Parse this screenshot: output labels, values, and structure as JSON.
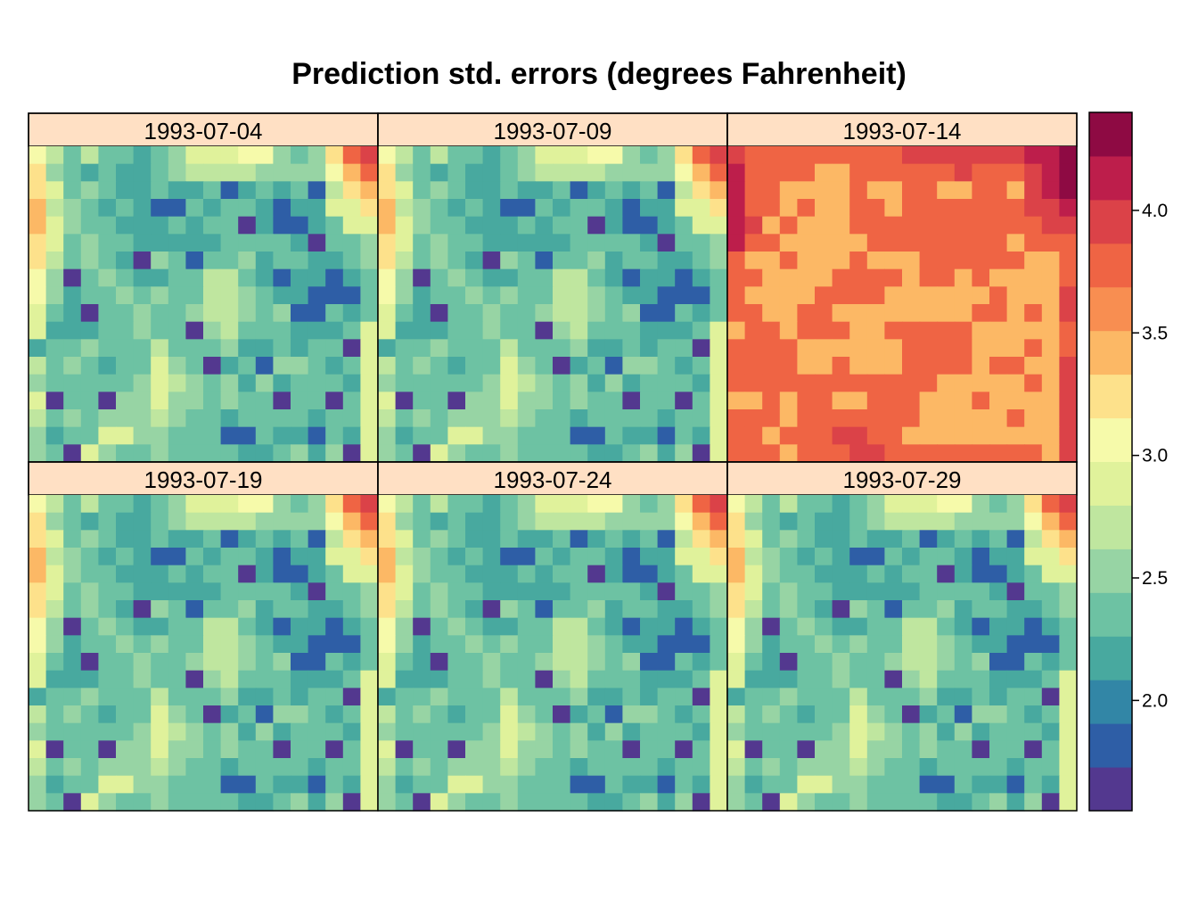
{
  "chart_data": {
    "type": "heatmap",
    "title": "Prediction std. errors (degrees Fahrenheit)",
    "xlabel": "",
    "ylabel": "",
    "layout": "3 columns x 2 rows",
    "panels": [
      "1993-07-04",
      "1993-07-09",
      "1993-07-14",
      "1993-07-19",
      "1993-07-24",
      "1993-07-29"
    ],
    "strip_color": "#ffe0c4",
    "colorkey": {
      "position": "right",
      "range": [
        1.55,
        4.4
      ],
      "ticks": [
        2.0,
        2.5,
        3.0,
        3.5,
        4.0
      ],
      "tick_labels": [
        "2.0",
        "2.5",
        "3.0",
        "3.5",
        "4.0"
      ],
      "colors": [
        "#53388f",
        "#2e5ea6",
        "#3286a6",
        "#48a99f",
        "#6dc2a3",
        "#97d4a4",
        "#bfe69f",
        "#e0f29b",
        "#f6faaa",
        "#fde18b",
        "#fcb865",
        "#f88e51",
        "#ef6444",
        "#db4248",
        "#bd1e4b",
        "#8e0a43"
      ]
    },
    "grid_size": [
      20,
      18
    ],
    "grid_note": "values estimated by reading the color key (approximate)",
    "base_grid": [
      [
        3.1,
        2.7,
        2.3,
        2.7,
        2.3,
        2.3,
        2.1,
        2.3,
        2.6,
        2.9,
        2.9,
        2.9,
        3.1,
        3.1,
        2.6,
        2.4,
        2.6,
        3.3,
        3.7,
        3.9
      ],
      [
        3.3,
        2.5,
        2.3,
        2.1,
        2.3,
        2.1,
        2.1,
        2.3,
        2.5,
        2.7,
        2.7,
        2.7,
        2.7,
        2.5,
        2.5,
        2.5,
        2.5,
        3.1,
        3.5,
        3.7
      ],
      [
        3.3,
        2.9,
        2.3,
        2.5,
        2.3,
        2.1,
        2.1,
        2.3,
        2.1,
        2.1,
        2.3,
        1.9,
        2.1,
        2.3,
        2.1,
        2.3,
        1.9,
        2.7,
        3.3,
        3.5
      ],
      [
        3.5,
        2.7,
        2.5,
        2.3,
        2.1,
        2.3,
        2.1,
        1.9,
        1.9,
        2.3,
        2.1,
        2.3,
        2.3,
        2.1,
        1.9,
        2.1,
        2.1,
        2.9,
        2.9,
        3.3
      ],
      [
        3.5,
        2.9,
        2.5,
        2.3,
        2.3,
        2.1,
        2.1,
        2.1,
        2.3,
        2.1,
        2.3,
        2.3,
        1.6,
        2.1,
        1.9,
        1.9,
        2.1,
        2.3,
        2.9,
        2.9
      ],
      [
        3.3,
        2.9,
        2.3,
        2.5,
        2.3,
        2.3,
        2.1,
        2.1,
        2.1,
        2.1,
        2.1,
        2.3,
        2.3,
        2.3,
        2.3,
        2.1,
        1.6,
        2.3,
        2.3,
        2.5
      ],
      [
        3.3,
        2.7,
        2.3,
        2.5,
        2.3,
        2.1,
        1.6,
        2.5,
        2.3,
        1.9,
        2.3,
        2.3,
        2.5,
        2.1,
        2.3,
        2.3,
        2.1,
        2.1,
        2.3,
        2.5
      ],
      [
        3.1,
        2.5,
        1.6,
        2.3,
        2.5,
        2.3,
        2.1,
        2.1,
        2.3,
        2.3,
        2.7,
        2.7,
        2.3,
        2.1,
        1.9,
        2.1,
        2.1,
        1.9,
        2.1,
        2.3
      ],
      [
        3.1,
        2.5,
        2.1,
        2.3,
        2.3,
        2.5,
        2.3,
        2.5,
        2.3,
        2.3,
        2.7,
        2.7,
        2.5,
        2.3,
        2.1,
        2.1,
        1.9,
        1.9,
        1.9,
        2.3
      ],
      [
        2.9,
        2.3,
        2.1,
        1.6,
        2.3,
        2.3,
        2.5,
        2.3,
        2.3,
        2.5,
        2.7,
        2.7,
        2.5,
        2.3,
        2.5,
        1.9,
        1.9,
        2.3,
        2.1,
        2.3
      ],
      [
        2.9,
        2.1,
        2.1,
        2.1,
        2.3,
        2.3,
        2.5,
        2.3,
        2.3,
        1.6,
        2.5,
        2.7,
        2.3,
        2.3,
        2.3,
        2.1,
        2.1,
        2.1,
        2.3,
        2.9
      ],
      [
        2.1,
        2.3,
        2.3,
        2.5,
        2.3,
        2.3,
        2.3,
        2.7,
        2.3,
        2.3,
        2.3,
        2.5,
        2.1,
        2.1,
        2.3,
        2.1,
        2.3,
        2.3,
        1.6,
        2.9
      ],
      [
        2.7,
        2.3,
        2.5,
        2.3,
        2.1,
        2.3,
        2.3,
        2.9,
        2.5,
        2.3,
        1.6,
        2.1,
        2.3,
        1.9,
        2.5,
        2.5,
        2.3,
        2.1,
        2.3,
        2.9
      ],
      [
        2.5,
        2.3,
        2.3,
        2.3,
        2.3,
        2.3,
        2.5,
        2.9,
        2.7,
        2.5,
        2.3,
        2.5,
        2.1,
        2.5,
        2.1,
        2.3,
        2.3,
        2.3,
        2.1,
        2.9
      ],
      [
        2.9,
        1.6,
        2.3,
        2.3,
        1.6,
        2.5,
        2.5,
        2.9,
        2.5,
        2.5,
        2.3,
        2.5,
        2.3,
        2.3,
        1.6,
        2.3,
        2.3,
        1.6,
        2.3,
        2.9
      ],
      [
        2.7,
        2.3,
        2.5,
        2.3,
        2.5,
        2.5,
        2.5,
        2.7,
        2.5,
        2.3,
        2.3,
        2.1,
        2.3,
        2.3,
        2.3,
        2.3,
        2.1,
        2.3,
        2.3,
        2.9
      ],
      [
        2.5,
        2.1,
        2.3,
        2.3,
        2.9,
        2.9,
        2.5,
        2.5,
        2.3,
        2.3,
        2.3,
        1.9,
        1.9,
        2.3,
        2.1,
        2.1,
        1.9,
        2.3,
        2.1,
        2.9
      ],
      [
        2.5,
        2.3,
        1.6,
        2.9,
        2.5,
        2.3,
        2.3,
        2.5,
        2.3,
        2.3,
        2.3,
        2.3,
        2.1,
        2.1,
        2.3,
        2.5,
        2.1,
        2.5,
        1.6,
        2.9
      ]
    ],
    "panel3_grid": [
      [
        3.9,
        3.7,
        3.7,
        3.7,
        3.7,
        3.7,
        3.7,
        3.7,
        3.7,
        3.7,
        3.9,
        3.9,
        3.9,
        3.9,
        3.9,
        3.9,
        3.9,
        4.1,
        4.2,
        4.3
      ],
      [
        4.1,
        3.7,
        3.7,
        3.7,
        3.7,
        3.5,
        3.5,
        3.7,
        3.7,
        3.7,
        3.7,
        3.7,
        3.7,
        3.9,
        3.7,
        3.7,
        3.7,
        3.9,
        4.2,
        4.3
      ],
      [
        4.1,
        3.7,
        3.7,
        3.5,
        3.5,
        3.5,
        3.5,
        3.7,
        3.5,
        3.5,
        3.7,
        3.7,
        3.5,
        3.5,
        3.7,
        3.7,
        3.5,
        3.9,
        4.1,
        4.3
      ],
      [
        4.1,
        3.7,
        3.7,
        3.5,
        3.7,
        3.5,
        3.5,
        3.7,
        3.7,
        3.5,
        3.7,
        3.7,
        3.7,
        3.7,
        3.7,
        3.7,
        3.7,
        3.9,
        3.9,
        4.1
      ],
      [
        4.1,
        3.9,
        3.5,
        3.7,
        3.5,
        3.5,
        3.5,
        3.7,
        3.7,
        3.7,
        3.7,
        3.7,
        3.7,
        3.7,
        3.7,
        3.7,
        3.7,
        3.7,
        3.9,
        3.9
      ],
      [
        4.1,
        3.7,
        3.7,
        3.5,
        3.5,
        3.5,
        3.5,
        3.5,
        3.7,
        3.7,
        3.7,
        3.7,
        3.7,
        3.7,
        3.7,
        3.7,
        3.5,
        3.7,
        3.7,
        3.7
      ],
      [
        3.7,
        3.5,
        3.5,
        3.7,
        3.5,
        3.5,
        3.5,
        3.7,
        3.5,
        3.5,
        3.5,
        3.7,
        3.7,
        3.7,
        3.7,
        3.7,
        3.7,
        3.5,
        3.5,
        3.7
      ],
      [
        3.7,
        3.7,
        3.5,
        3.5,
        3.5,
        3.5,
        3.7,
        3.7,
        3.7,
        3.7,
        3.5,
        3.7,
        3.7,
        3.5,
        3.7,
        3.5,
        3.5,
        3.5,
        3.5,
        3.7
      ],
      [
        3.7,
        3.5,
        3.5,
        3.5,
        3.5,
        3.7,
        3.7,
        3.7,
        3.7,
        3.5,
        3.5,
        3.5,
        3.5,
        3.5,
        3.5,
        3.7,
        3.5,
        3.5,
        3.5,
        3.9
      ],
      [
        3.7,
        3.7,
        3.5,
        3.5,
        3.7,
        3.7,
        3.5,
        3.5,
        3.5,
        3.5,
        3.5,
        3.5,
        3.5,
        3.5,
        3.7,
        3.7,
        3.5,
        3.7,
        3.5,
        3.9
      ],
      [
        3.5,
        3.7,
        3.7,
        3.5,
        3.7,
        3.7,
        3.7,
        3.5,
        3.5,
        3.7,
        3.7,
        3.7,
        3.7,
        3.7,
        3.5,
        3.5,
        3.5,
        3.5,
        3.5,
        3.7
      ],
      [
        3.7,
        3.7,
        3.7,
        3.7,
        3.5,
        3.5,
        3.5,
        3.5,
        3.5,
        3.5,
        3.7,
        3.7,
        3.7,
        3.7,
        3.5,
        3.5,
        3.5,
        3.7,
        3.5,
        3.7
      ],
      [
        3.7,
        3.7,
        3.7,
        3.7,
        3.5,
        3.5,
        3.7,
        3.5,
        3.5,
        3.5,
        3.7,
        3.7,
        3.7,
        3.7,
        3.5,
        3.7,
        3.7,
        3.5,
        3.5,
        3.9
      ],
      [
        3.7,
        3.7,
        3.7,
        3.7,
        3.7,
        3.7,
        3.7,
        3.7,
        3.7,
        3.7,
        3.7,
        3.7,
        3.5,
        3.5,
        3.5,
        3.5,
        3.5,
        3.7,
        3.5,
        3.9
      ],
      [
        3.5,
        3.5,
        3.7,
        3.5,
        3.7,
        3.7,
        3.5,
        3.5,
        3.7,
        3.7,
        3.7,
        3.5,
        3.5,
        3.5,
        3.7,
        3.5,
        3.5,
        3.5,
        3.5,
        3.9
      ],
      [
        3.7,
        3.7,
        3.7,
        3.5,
        3.7,
        3.7,
        3.7,
        3.7,
        3.7,
        3.7,
        3.7,
        3.5,
        3.5,
        3.5,
        3.5,
        3.5,
        3.7,
        3.5,
        3.5,
        3.9
      ],
      [
        3.7,
        3.7,
        3.5,
        3.7,
        3.7,
        3.7,
        3.9,
        3.9,
        3.7,
        3.7,
        3.5,
        3.5,
        3.5,
        3.5,
        3.5,
        3.5,
        3.5,
        3.5,
        3.5,
        3.9
      ],
      [
        3.7,
        3.7,
        3.7,
        3.5,
        3.7,
        3.7,
        3.7,
        3.9,
        3.9,
        3.7,
        3.7,
        3.7,
        3.7,
        3.7,
        3.7,
        3.7,
        3.7,
        3.7,
        3.5,
        3.9
      ]
    ]
  }
}
